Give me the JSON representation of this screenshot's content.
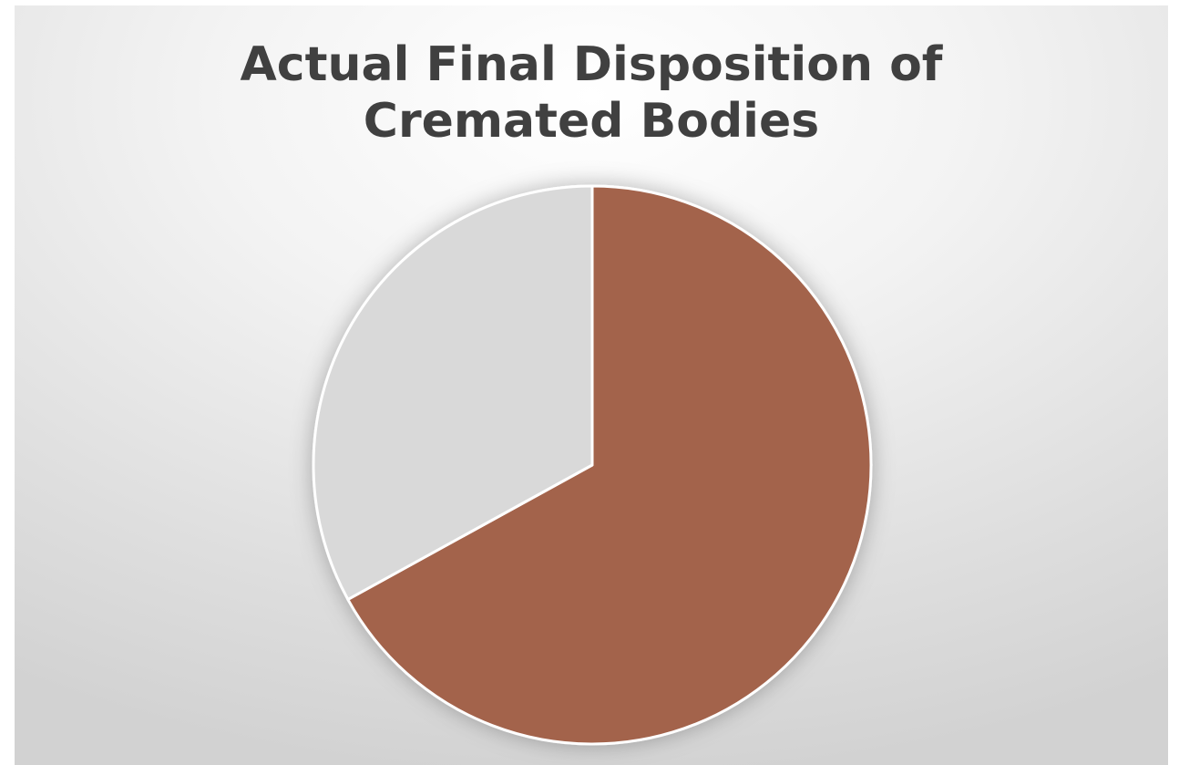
{
  "chart_data": {
    "type": "pie",
    "title": "Actual Final Disposition of\nCremated Bodies",
    "slices": [
      {
        "value": 67,
        "color": "#a3634c"
      },
      {
        "value": 33,
        "color": "#d9d9d9"
      }
    ],
    "start_angle_deg": 0,
    "direction": "clockwise",
    "legend": "none"
  }
}
